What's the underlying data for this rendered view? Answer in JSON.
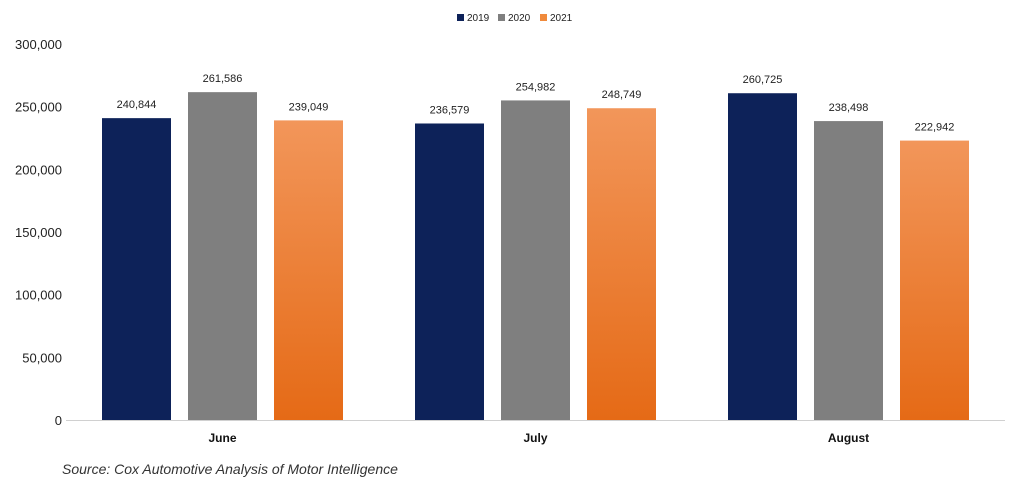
{
  "chart_data": {
    "type": "bar",
    "categories": [
      "June",
      "July",
      "August"
    ],
    "series": [
      {
        "name": "2019",
        "color": "#0d2259",
        "values": [
          240844,
          236579,
          260725
        ]
      },
      {
        "name": "2020",
        "color": "#7f7f7f",
        "values": [
          261586,
          254982,
          238498
        ]
      },
      {
        "name": "2021",
        "color": "#f08a3c",
        "values": [
          239049,
          248749,
          222942
        ]
      }
    ],
    "data_labels": [
      [
        "240,844",
        "236,579",
        "260,725"
      ],
      [
        "261,586",
        "254,982",
        "238,498"
      ],
      [
        "239,049",
        "248,749",
        "222,942"
      ]
    ],
    "ylim": [
      0,
      300000
    ],
    "yticks": [
      0,
      50000,
      100000,
      150000,
      200000,
      250000,
      300000
    ],
    "ytick_labels": [
      "0",
      "50,000",
      "100,000",
      "150,000",
      "200,000",
      "250,000",
      "300,000"
    ],
    "legend_position": "top-center",
    "grid": false,
    "title": "",
    "xlabel": "",
    "ylabel": ""
  },
  "source_text": "Source: Cox Automotive Analysis of Motor Intelligence"
}
